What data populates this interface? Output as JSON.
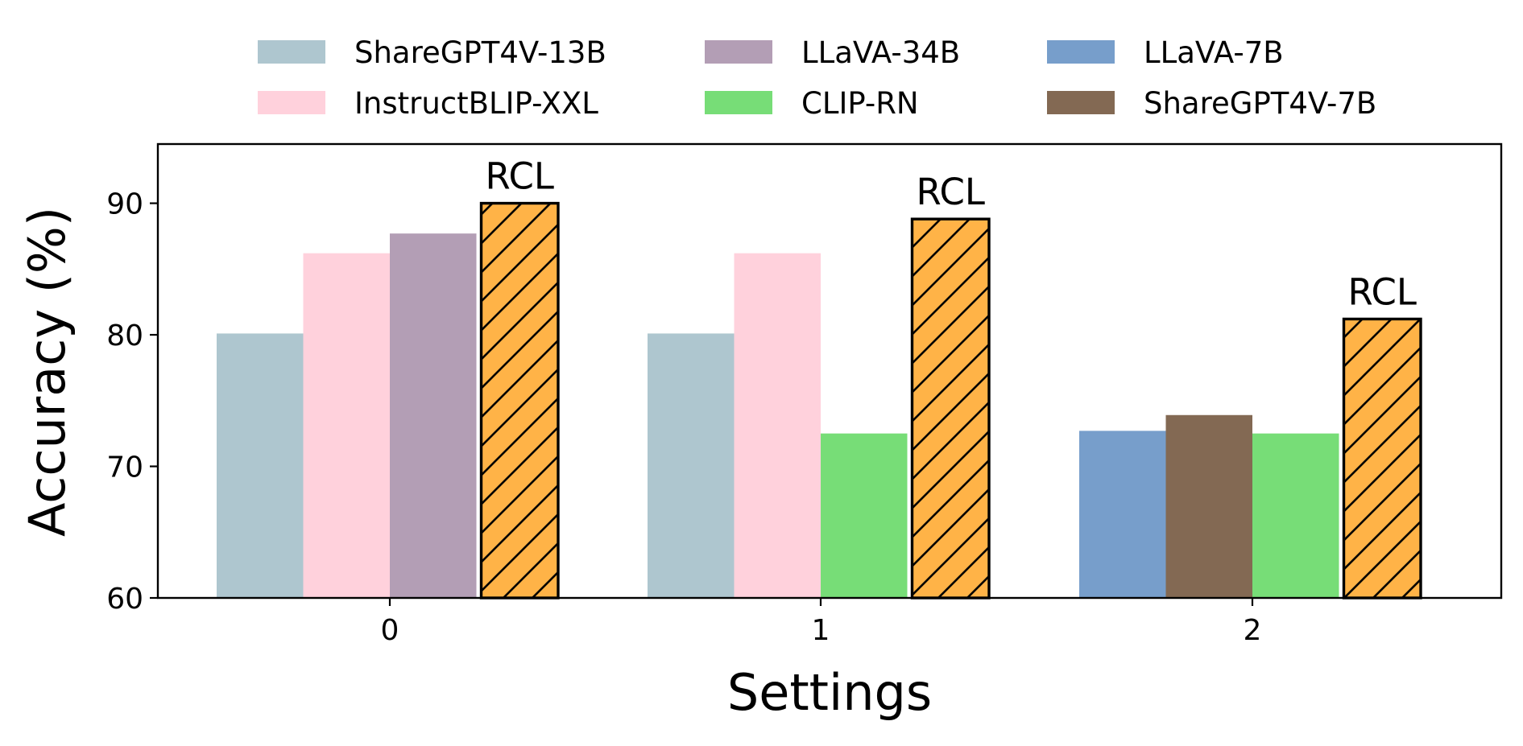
{
  "chart_data": {
    "type": "bar",
    "title": "",
    "xlabel": "Settings",
    "ylabel": "Accuracy (%)",
    "ylim": [
      60,
      94.5
    ],
    "yticks": [
      60,
      70,
      80,
      90
    ],
    "categories": [
      "0",
      "1",
      "2"
    ],
    "grid": false,
    "legend_position": "top-center",
    "legend": [
      {
        "name": "ShareGPT4V-13B",
        "color": "#AEC6CF"
      },
      {
        "name": "LLaVA-34B",
        "color": "#B39EB5"
      },
      {
        "name": "LLaVA-7B",
        "color": "#779ECB"
      },
      {
        "name": "InstructBLIP-XXL",
        "color": "#FFD1DC"
      },
      {
        "name": "CLIP-RN",
        "color": "#77DD77"
      },
      {
        "name": "ShareGPT4V-7B",
        "color": "#836953"
      }
    ],
    "groups": [
      {
        "category": "0",
        "bars": [
          {
            "series": "ShareGPT4V-13B",
            "value": 80.1
          },
          {
            "series": "InstructBLIP-XXL",
            "value": 86.2
          },
          {
            "series": "LLaVA-34B",
            "value": 87.7
          },
          {
            "series": "RCL",
            "value": 90.0
          }
        ]
      },
      {
        "category": "1",
        "bars": [
          {
            "series": "ShareGPT4V-13B",
            "value": 80.1
          },
          {
            "series": "InstructBLIP-XXL",
            "value": 86.2
          },
          {
            "series": "CLIP-RN",
            "value": 72.5
          },
          {
            "series": "RCL",
            "value": 88.8
          }
        ]
      },
      {
        "category": "2",
        "bars": [
          {
            "series": "LLaVA-7B",
            "value": 72.7
          },
          {
            "series": "ShareGPT4V-7B",
            "value": 73.9
          },
          {
            "series": "CLIP-RN",
            "value": 72.5
          },
          {
            "series": "RCL",
            "value": 81.2
          }
        ]
      }
    ],
    "highlight": {
      "label": "RCL",
      "color": "#FFB347",
      "hatch": "diagonal",
      "edge_color": "#000000"
    }
  }
}
